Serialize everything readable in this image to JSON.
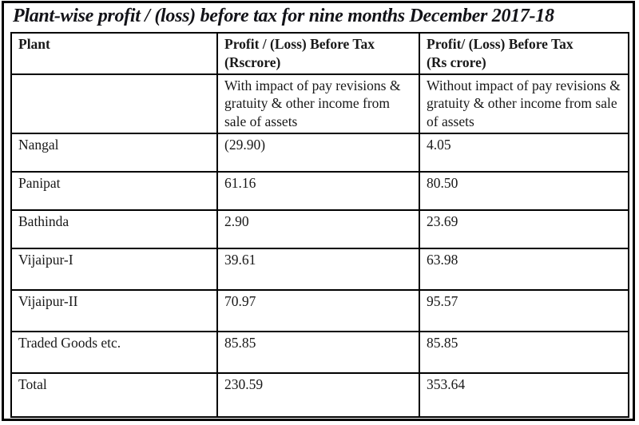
{
  "title": "Plant-wise profit / (loss) before tax for nine months December 2017-18",
  "table": {
    "header": {
      "plant": "Plant",
      "with_line1": "Profit / (Loss) Before Tax",
      "with_line2": "(Rscrore)",
      "without_line1": "Profit/ (Loss) Before Tax",
      "without_line2": "(Rs crore)"
    },
    "subheader": {
      "plant": "",
      "with_impact": "With impact of pay revisions & gratuity & other income from sale of assets",
      "without_impact": "Without impact of pay revisions & gratuity & other income from sale of assets"
    },
    "rows": [
      {
        "plant": "Nangal",
        "with_impact": "(29.90)",
        "without_impact": "4.05"
      },
      {
        "plant": "Panipat",
        "with_impact": "61.16",
        "without_impact": "80.50"
      },
      {
        "plant": "Bathinda",
        "with_impact": "2.90",
        "without_impact": "23.69"
      },
      {
        "plant": "Vijaipur-I",
        "with_impact": "39.61",
        "without_impact": "63.98"
      },
      {
        "plant": "Vijaipur-II",
        "with_impact": "70.97",
        "without_impact": "95.57"
      },
      {
        "plant": "Traded Goods etc.",
        "with_impact": "85.85",
        "without_impact": "85.85"
      },
      {
        "plant": "Total",
        "with_impact": "230.59",
        "without_impact": "353.64"
      }
    ]
  },
  "colors": {
    "border": "#000000",
    "text": "#181818",
    "background": "#ffffff"
  }
}
